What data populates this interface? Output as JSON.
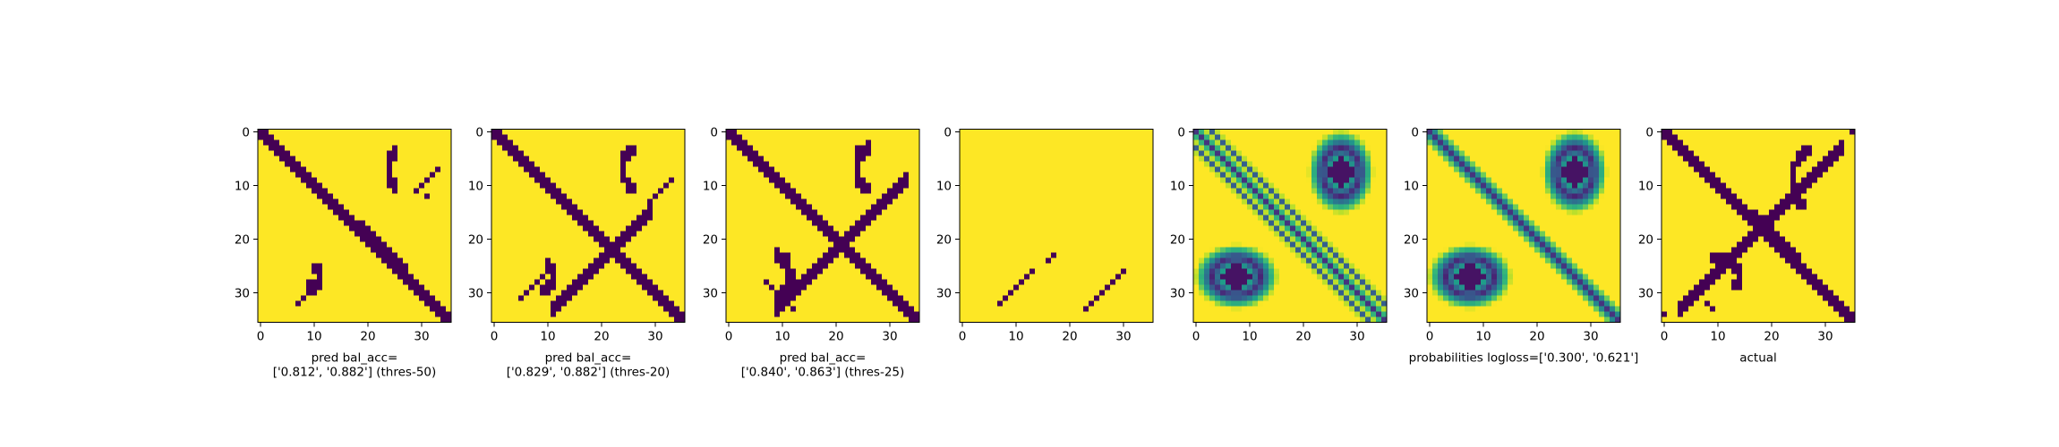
{
  "colors": {
    "low": "#440154",
    "mid": "#21918c",
    "high": "#fde725"
  },
  "chart_data": [
    {
      "type": "heatmap",
      "xlabel": [
        "pred bal_acc=",
        "['0.812', '0.882'] (thres-50)"
      ],
      "xticks": [
        0,
        10,
        20,
        30
      ],
      "yticks": [
        0,
        10,
        20,
        30
      ],
      "xlim": [
        -0.5,
        35.5
      ],
      "ylim": [
        35.5,
        -0.5
      ]
    },
    {
      "type": "heatmap",
      "xlabel": [
        "pred bal_acc=",
        "['0.829', '0.882'] (thres-20)"
      ],
      "xticks": [
        0,
        10,
        20,
        30
      ],
      "yticks": [
        0,
        10,
        20,
        30
      ],
      "xlim": [
        -0.5,
        35.5
      ],
      "ylim": [
        35.5,
        -0.5
      ]
    },
    {
      "type": "heatmap",
      "xlabel": [
        "pred bal_acc=",
        "['0.840', '0.863'] (thres-25)"
      ],
      "xticks": [
        0,
        10,
        20,
        30
      ],
      "yticks": [
        0,
        10,
        20,
        30
      ],
      "xlim": [
        -0.5,
        35.5
      ],
      "ylim": [
        35.5,
        -0.5
      ]
    },
    {
      "type": "heatmap",
      "xlabel": [],
      "xticks": [
        0,
        10,
        20,
        30
      ],
      "yticks": [
        0,
        10,
        20,
        30
      ],
      "xlim": [
        -0.5,
        35.5
      ],
      "ylim": [
        35.5,
        -0.5
      ]
    },
    {
      "type": "heatmap",
      "xlabel": [],
      "xticks": [
        0,
        10,
        20,
        30
      ],
      "yticks": [
        0,
        10,
        20,
        30
      ],
      "xlim": [
        -0.5,
        35.5
      ],
      "ylim": [
        35.5,
        -0.5
      ]
    },
    {
      "type": "heatmap",
      "xlabel": [
        "probabilities logloss=['0.300', '0.621']"
      ],
      "xticks": [
        0,
        10,
        20,
        30
      ],
      "yticks": [
        0,
        10,
        20,
        30
      ],
      "xlim": [
        -0.5,
        35.5
      ],
      "ylim": [
        35.5,
        -0.5
      ]
    },
    {
      "type": "heatmap",
      "xlabel": [
        "actual"
      ],
      "xticks": [
        0,
        10,
        20,
        30
      ],
      "yticks": [
        0,
        10,
        20,
        30
      ],
      "xlim": [
        -0.5,
        35.5
      ],
      "ylim": [
        35.5,
        -0.5
      ]
    }
  ]
}
